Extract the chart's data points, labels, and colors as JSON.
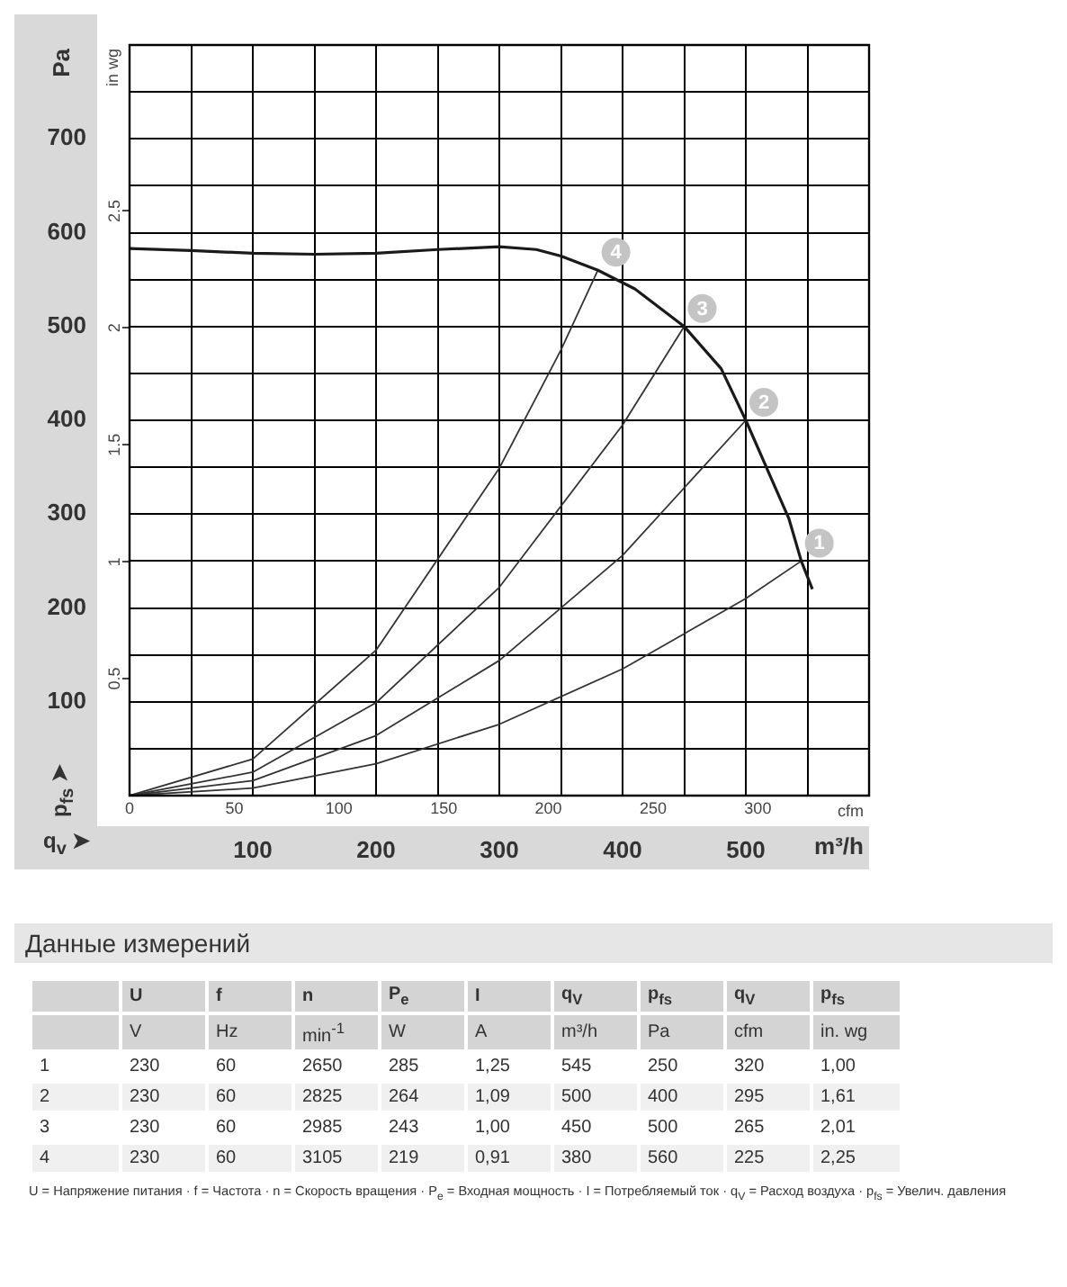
{
  "chart_data": [
    {
      "type": "line",
      "xlabel": "m³/h",
      "ylabel": "Pa",
      "y2label": "in wg",
      "x2label": "cfm",
      "grid": true,
      "marker": "none",
      "xlim": [
        0,
        600
      ],
      "xticks": [
        {
          "value": 50,
          "label": null
        },
        100,
        {
          "value": 150,
          "label": null
        },
        200,
        {
          "value": 250,
          "label": null
        },
        300,
        {
          "value": 350,
          "label": null
        },
        400,
        {
          "value": 450,
          "label": null
        },
        500,
        {
          "value": 550,
          "label": null
        }
      ],
      "x2lim": [
        0,
        353.1
      ],
      "x2ticks": [
        0,
        50,
        100,
        150,
        200,
        250,
        300
      ],
      "ylim": [
        0,
        800
      ],
      "yticks": [
        {
          "value": 50,
          "label": null
        },
        100,
        {
          "value": 150,
          "label": null
        },
        200,
        {
          "value": 250,
          "label": null
        },
        300,
        {
          "value": 350,
          "label": null
        },
        400,
        {
          "value": 450,
          "label": null
        },
        500,
        {
          "value": 550,
          "label": null
        },
        600,
        {
          "value": 650,
          "label": null
        },
        700,
        {
          "value": 750,
          "label": null
        }
      ],
      "y2lim": [
        0,
        3.21
      ],
      "y2ticks": [
        0.5,
        1,
        1.5,
        2,
        2.5
      ],
      "series": [
        {
          "color": "#1a1a1a",
          "x": [
            0,
            50,
            100,
            150,
            200,
            250,
            300,
            330,
            350,
            380,
            410,
            450,
            480,
            500,
            520,
            535,
            545,
            554
          ],
          "values": [
            583,
            581,
            578,
            577,
            578,
            582,
            585,
            582,
            575,
            560,
            540,
            500,
            455,
            400,
            340,
            295,
            250,
            220
          ]
        },
        {
          "color": "#333333",
          "x": [
            0,
            100,
            200,
            300,
            400,
            500,
            545
          ],
          "values": [
            0,
            8,
            34,
            76,
            135,
            210,
            250
          ]
        },
        {
          "color": "#333333",
          "x": [
            0,
            100,
            200,
            300,
            400,
            500
          ],
          "values": [
            0,
            16,
            64,
            144,
            256,
            400
          ]
        },
        {
          "color": "#333333",
          "x": [
            0,
            100,
            200,
            300,
            400,
            450
          ],
          "values": [
            0,
            25,
            99,
            222,
            395,
            500
          ]
        },
        {
          "color": "#333333",
          "x": [
            0,
            100,
            200,
            300,
            350,
            380
          ],
          "values": [
            0,
            39,
            155,
            349,
            475,
            560
          ]
        }
      ],
      "annotations": [
        "p$_{fs}$ ➤",
        "q$_{v}$ ➤",
        {
          "text": "1",
          "x": 545,
          "y": 250
        },
        {
          "text": "2",
          "x": 500,
          "y": 400
        },
        {
          "text": "3",
          "x": 450,
          "y": 500
        },
        {
          "text": "4",
          "x": 380,
          "y": 560
        }
      ]
    },
    {
      "type": "other",
      "title": "Данные измерений",
      "annotations": [
        "\tU\tf\tn\tP$_{e}$\tI\tq$_{V}$\tp$_{fs}$\tq$_{V}$\tp$_{fs}$",
        "\tV\tHz\tmin$^{-1}$\tW\tA\tm³/h\tPa\tcfm\tin. wg",
        "1\t230\t60\t2650\t285\t1,25\t545\t250\t320\t1,00",
        "2\t230\t60\t2825\t264\t1,09\t500\t400\t295\t1,61",
        "3\t230\t60\t2985\t243\t1,00\t450\t500\t265\t2,01",
        "4\t230\t60\t3105\t219\t0,91\t380\t560\t225\t2,25",
        "U = Напряжение питания · f = Частота · n = Скорость вращения · P$_{e}$ = Входная мощность · I = Потребляемый ток · q$_{V}$ = Расход воздуха · p$_{fs}$ = Увелич. давления"
      ]
    }
  ]
}
